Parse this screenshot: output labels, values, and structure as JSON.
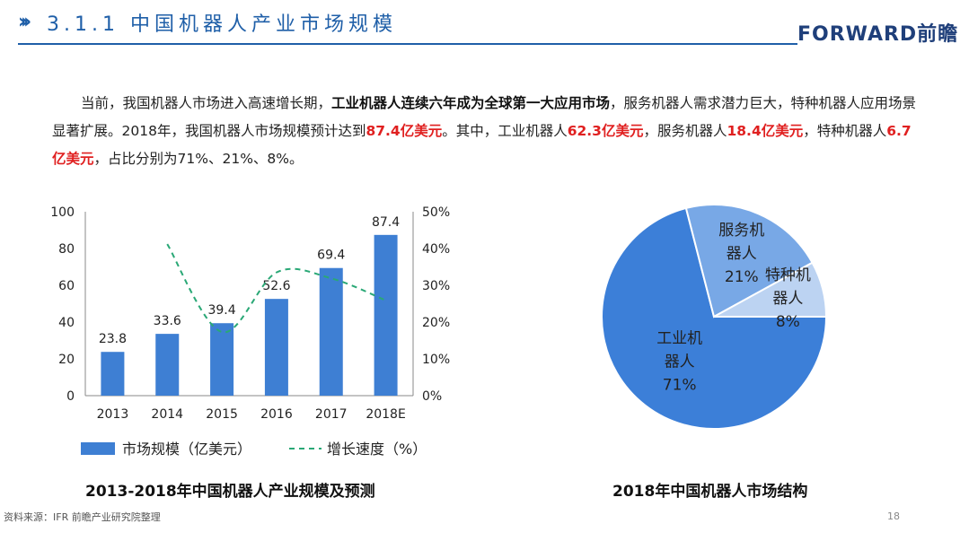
{
  "header": {
    "title": "3.1.1 中国机器人产业市场规模",
    "logo": "FORWARD前瞻"
  },
  "intro": {
    "p1": "当前，我国机器人市场进入高速增长期，",
    "p1_bold": "工业机器人连续六年成为全球第一大应用市场",
    "p2": "，服务机器人需求潜力巨大，特种机器人应用场景显著扩展。2018年，我国机器人市场规模预计达到",
    "v_total": "87.4亿美元",
    "p3": "。其中，工业机器人",
    "v_industrial": "62.3亿美元",
    "p4": "，服务机器人",
    "v_service": "18.4亿美元",
    "p5": "，特种机器人",
    "v_special": "6.7亿美元",
    "p6": "，占比分别为71%、21%、8%。"
  },
  "chart_data": [
    {
      "type": "bar",
      "categories": [
        "2013",
        "2014",
        "2015",
        "2016",
        "2017",
        "2018E"
      ],
      "series": [
        {
          "name": "市场规模（亿美元）",
          "type": "bar",
          "values": [
            23.8,
            33.6,
            39.4,
            52.6,
            69.4,
            87.4
          ],
          "color": "#3e7fd3"
        },
        {
          "name": "增长速度（%）",
          "type": "line",
          "style": "dashed",
          "values": [
            null,
            41.2,
            17.3,
            33.5,
            31.9,
            25.9
          ],
          "color": "#2aa876"
        }
      ],
      "data_labels": [
        "23.8",
        "33.6",
        "39.4",
        "52.6",
        "69.4",
        "87.4"
      ],
      "ylim": [
        0,
        100
      ],
      "yticks": [
        "0",
        "20",
        "40",
        "60",
        "80",
        "100"
      ],
      "y2lim": [
        0,
        50
      ],
      "y2ticks": [
        "0%",
        "10%",
        "20%",
        "30%",
        "40%",
        "50%"
      ],
      "legend": "bottom",
      "title": "2013-2018年中国机器人产业规模及预测"
    },
    {
      "type": "pie",
      "slices": [
        {
          "label_lines": [
            "工业机",
            "器人",
            "71%"
          ],
          "value": 71,
          "color": "#3c7fd8"
        },
        {
          "label_lines": [
            "服务机",
            "器人",
            "21%"
          ],
          "value": 21,
          "color": "#78a8e6"
        },
        {
          "label_lines": [
            "特种机",
            "器人",
            "8%"
          ],
          "value": 8,
          "color": "#bcd3f2"
        }
      ],
      "title": "2018年中国机器人市场结构"
    }
  ],
  "footer": {
    "source": "资料来源：IFR 前瞻产业研究院整理",
    "page": "18"
  },
  "colors": {
    "accent": "#1f5fa8",
    "highlight": "#e02020"
  }
}
